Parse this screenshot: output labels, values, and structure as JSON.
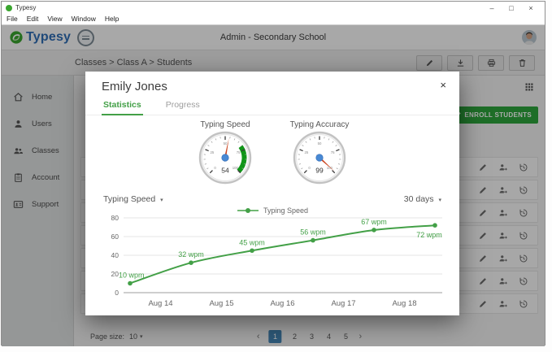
{
  "window": {
    "title": "Typesy",
    "menus": [
      "File",
      "Edit",
      "View",
      "Window",
      "Help"
    ],
    "controls": {
      "minimize": "–",
      "maximize": "□",
      "close": "×"
    }
  },
  "header": {
    "logo_text": "Typesy",
    "center_title": "Admin - Secondary School"
  },
  "toolbar": {
    "breadcrumb": "Classes > Class A > Students",
    "actions": [
      "edit",
      "download",
      "print",
      "delete"
    ]
  },
  "sidebar": {
    "items": [
      {
        "label": "Home",
        "icon": "home"
      },
      {
        "label": "Users",
        "icon": "user"
      },
      {
        "label": "Classes",
        "icon": "users"
      },
      {
        "label": "Account",
        "icon": "clipboard"
      },
      {
        "label": "Support",
        "icon": "idcard"
      }
    ]
  },
  "main": {
    "enroll_button_label": "ENROLL STUDENTS",
    "student_row_count": 7,
    "row_actions": [
      "edit",
      "unenroll",
      "history"
    ],
    "pagination": {
      "page_size_label": "Page size:",
      "page_size_value": "10",
      "pages": [
        "1",
        "2",
        "3",
        "4",
        "5"
      ],
      "active_page": "1"
    }
  },
  "modal": {
    "title": "Emily Jones",
    "tabs": [
      {
        "label": "Statistics",
        "active": true
      },
      {
        "label": "Progress",
        "active": false
      }
    ],
    "gauges": [
      {
        "label": "Typing Speed",
        "value": 54,
        "min": 0,
        "max": 100,
        "green_from": 70,
        "green_to": 100
      },
      {
        "label": "Typing Accuracy",
        "value": 99,
        "min": 0,
        "max": 100
      }
    ],
    "metric_select": "Typing Speed",
    "range_select": "30 days"
  },
  "icons": {
    "dropdown_caret": "▾",
    "prev_page": "‹",
    "next_page": "›",
    "close": "×"
  },
  "colors": {
    "accent_green": "#43a047",
    "enroll_green": "#2da43c",
    "gauge_band_green": "#109618",
    "gauge_needle": "#cc4a25",
    "gauge_hub": "#4989d4",
    "logo_blue": "#2f6db5",
    "pagination_active": "#4484b4"
  },
  "chart_data": {
    "type": "line",
    "title": "Typing Speed over last 30 days",
    "legend": "Typing Speed",
    "legend_position": "top-center",
    "x_labels": [
      "Aug 14",
      "Aug 15",
      "Aug 16",
      "Aug 17",
      "Aug 18"
    ],
    "series": [
      {
        "name": "Typing Speed",
        "values": [
          10,
          32,
          45,
          56,
          67,
          72
        ],
        "point_labels": [
          "10 wpm",
          "32 wpm",
          "45 wpm",
          "56 wpm",
          "67 wpm",
          "72 wpm"
        ]
      }
    ],
    "ylim": [
      0,
      80
    ],
    "yticks": [
      0,
      20,
      40,
      60,
      80
    ],
    "grid": true,
    "line_color": "#43a047",
    "note": "x tick labels sit between consecutive data points"
  }
}
